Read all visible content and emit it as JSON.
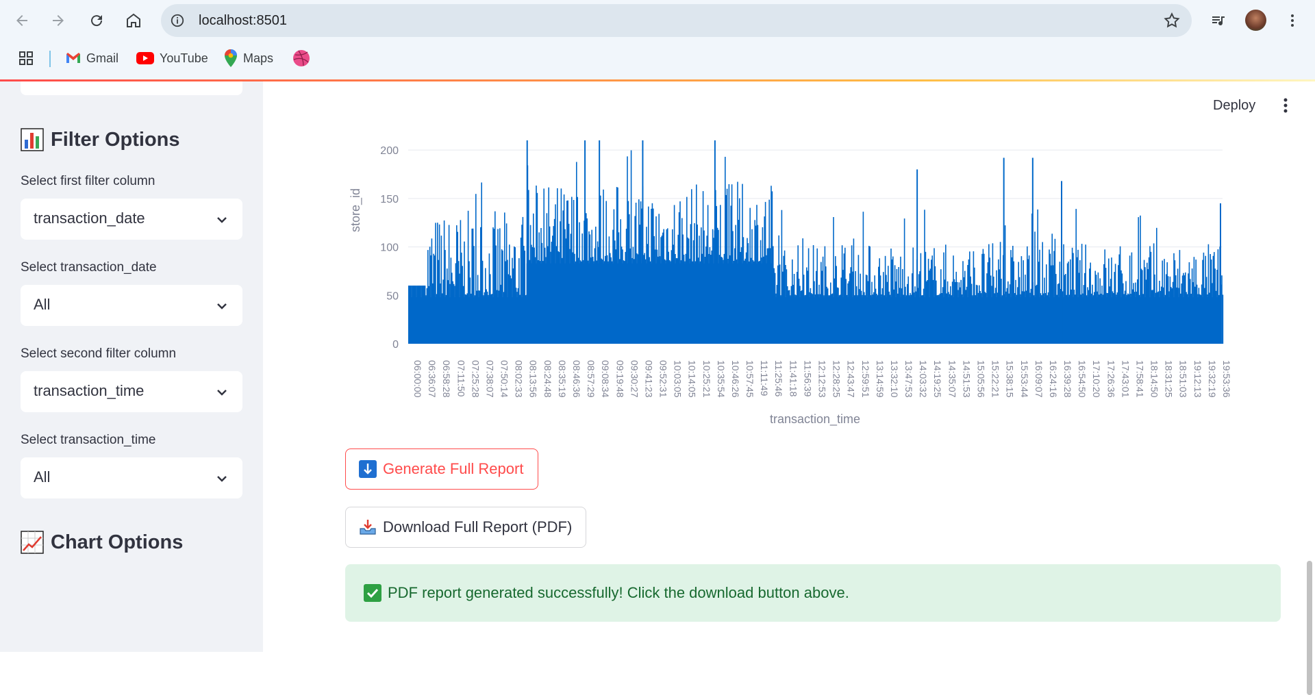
{
  "browser": {
    "url": "localhost:8501",
    "bookmarks": [
      {
        "label": "Gmail",
        "icon": "gmail-icon"
      },
      {
        "label": "YouTube",
        "icon": "youtube-icon"
      },
      {
        "label": "Maps",
        "icon": "maps-icon"
      },
      {
        "label": "",
        "icon": "dribbble-icon"
      }
    ]
  },
  "sidebar": {
    "filter_heading": "Filter Options",
    "first_filter_label": "Select first filter column",
    "first_filter_value": "transaction_date",
    "first_value_label": "Select transaction_date",
    "first_value_value": "All",
    "second_filter_label": "Select second filter column",
    "second_filter_value": "transaction_time",
    "second_value_label": "Select transaction_time",
    "second_value_value": "All",
    "chart_heading": "Chart Options"
  },
  "header": {
    "deploy_label": "Deploy"
  },
  "chart_data": {
    "type": "bar",
    "xlabel": "transaction_time",
    "ylabel": "store_id",
    "ylim": [
      0,
      210
    ],
    "yticks": [
      0,
      50,
      100,
      150,
      200
    ],
    "xtick_labels": [
      "06:00:00",
      "06:36:07",
      "06:58:28",
      "07:11:50",
      "07:25:28",
      "07:38:07",
      "07:50:14",
      "08:02:33",
      "08:13:56",
      "08:24:48",
      "08:35:19",
      "08:46:36",
      "08:57:29",
      "09:08:34",
      "09:19:48",
      "09:30:27",
      "09:41:23",
      "09:52:31",
      "10:03:05",
      "10:14:05",
      "10:25:21",
      "10:35:54",
      "10:46:26",
      "10:57:45",
      "11:11:49",
      "11:25:46",
      "11:41:18",
      "11:56:39",
      "12:12:53",
      "12:28:25",
      "12:43:47",
      "12:59:51",
      "13:14:59",
      "13:32:10",
      "13:47:53",
      "14:03:32",
      "14:19:25",
      "14:35:07",
      "14:51:53",
      "15:05:56",
      "15:22:21",
      "15:38:15",
      "15:53:44",
      "16:09:07",
      "16:24:16",
      "16:39:28",
      "16:54:50",
      "17:10:20",
      "17:26:36",
      "17:43:01",
      "17:58:41",
      "18:14:50",
      "18:31:25",
      "18:51:03",
      "19:12:13",
      "19:32:19",
      "19:53:36"
    ],
    "grid": true,
    "color": "#0068c9",
    "baseline_value": 60,
    "segments": [
      {
        "range": [
          "06:00:00",
          "08:13:56"
        ],
        "typical_low": 50,
        "typical_high": 130
      },
      {
        "range": [
          "08:13:56",
          "11:25:46"
        ],
        "typical_low": 85,
        "typical_high": 160
      },
      {
        "range": [
          "11:25:46",
          "19:53:36"
        ],
        "typical_low": 50,
        "typical_high": 100
      }
    ],
    "peaks": [
      {
        "x": "08:13:56",
        "y": 210
      },
      {
        "x": "08:57:29",
        "y": 210
      },
      {
        "x": "09:08:34",
        "y": 210
      },
      {
        "x": "09:41:23",
        "y": 210
      },
      {
        "x": "10:35:54",
        "y": 210
      },
      {
        "x": "14:03:32",
        "y": 180
      },
      {
        "x": "15:38:15",
        "y": 192
      },
      {
        "x": "16:09:07",
        "y": 192
      },
      {
        "x": "16:39:28",
        "y": 168
      },
      {
        "x": "19:53:36",
        "y": 145
      }
    ]
  },
  "buttons": {
    "generate_label": "Generate Full Report",
    "download_label": "Download Full Report (PDF)"
  },
  "alert": {
    "success_text": "PDF report generated successfully! Click the download button above."
  }
}
